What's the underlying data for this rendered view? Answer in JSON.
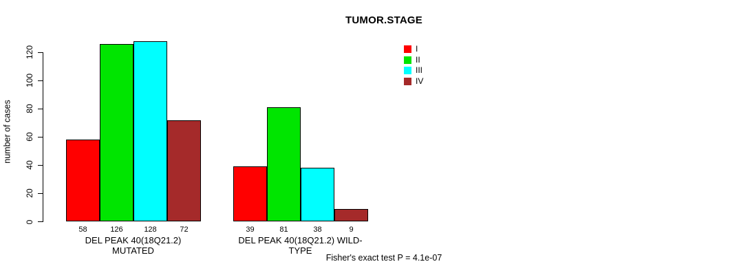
{
  "chart_data": {
    "type": "bar",
    "title": "TUMOR.STAGE",
    "ylabel": "number of cases",
    "xlabel": "",
    "ylim": [
      0,
      120
    ],
    "yticks": [
      0,
      20,
      40,
      60,
      80,
      100,
      120
    ],
    "grid": false,
    "legend_position": "top-right-of-plot",
    "categories": [
      "DEL PEAK 40(18Q21.2) MUTATED",
      "DEL PEAK 40(18Q21.2) WILD-TYPE"
    ],
    "series": [
      {
        "name": "I",
        "color": "#ff0000",
        "values": [
          58,
          39
        ]
      },
      {
        "name": "II",
        "color": "#00e500",
        "values": [
          126,
          81
        ]
      },
      {
        "name": "III",
        "color": "#00ffff",
        "values": [
          128,
          38
        ]
      },
      {
        "name": "IV",
        "color": "#a52a2a",
        "values": [
          72,
          9
        ]
      }
    ],
    "bar_value_labels": {
      "group1": [
        58,
        126,
        128,
        72
      ],
      "group2": [
        39,
        81,
        38,
        9
      ]
    },
    "annotation": "Fisher's exact test P = 4.1e-07"
  }
}
